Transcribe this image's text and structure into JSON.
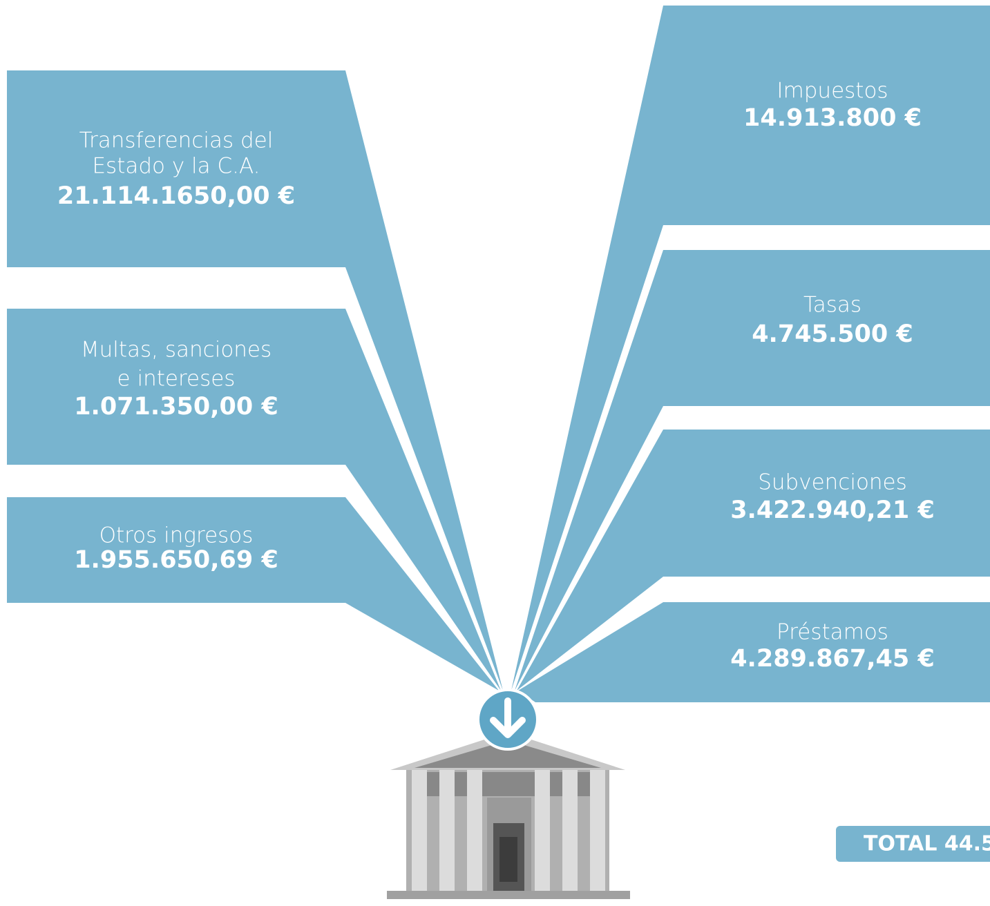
{
  "left_items": [
    {
      "label_lines": [
        "Transferencias del",
        "Estado y la C.A."
      ],
      "amount": "21.114.1650,00 €"
    },
    {
      "label_lines": [
        "Multas, sanciones",
        "e intereses"
      ],
      "amount": "1.071.350,00 €"
    },
    {
      "label_lines": [
        "Otros ingresos"
      ],
      "amount": "1.955.650,69 €"
    }
  ],
  "right_items": [
    {
      "label_lines": [
        "Impuestos"
      ],
      "amount": "14.913.800 €"
    },
    {
      "label_lines": [
        "Tasas"
      ],
      "amount": "4.745.500 €"
    },
    {
      "label_lines": [
        "Subvenciones"
      ],
      "amount": "3.422.940,21 €"
    },
    {
      "label_lines": [
        "Préstamos"
      ],
      "amount": "4.289.867,45 €"
    }
  ],
  "total": "TOTAL 44.5"
}
